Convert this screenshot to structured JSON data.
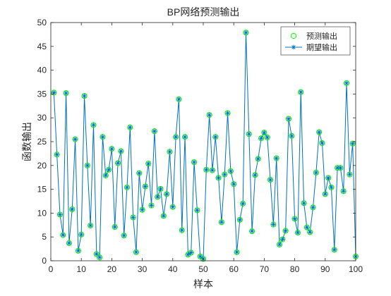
{
  "chart_data": {
    "type": "line",
    "title": "BP网络预测输出",
    "xlabel": "样本",
    "ylabel": "函数输出",
    "xlim": [
      0,
      100
    ],
    "ylim": [
      0,
      50
    ],
    "xticks": [
      "0",
      "10",
      "20",
      "30",
      "40",
      "50",
      "60",
      "70",
      "80",
      "90",
      "100"
    ],
    "yticks": [
      "0",
      "5",
      "10",
      "15",
      "20",
      "25",
      "30",
      "35",
      "40",
      "45",
      "50"
    ],
    "grid": false,
    "legend_position": "top-right",
    "x": [
      1,
      2,
      3,
      4,
      5,
      6,
      7,
      8,
      9,
      10,
      11,
      12,
      13,
      14,
      15,
      16,
      17,
      18,
      19,
      20,
      21,
      22,
      23,
      24,
      25,
      26,
      27,
      28,
      29,
      30,
      31,
      32,
      33,
      34,
      35,
      36,
      37,
      38,
      39,
      40,
      41,
      42,
      43,
      44,
      45,
      46,
      47,
      48,
      49,
      50,
      51,
      52,
      53,
      54,
      55,
      56,
      57,
      58,
      59,
      60,
      61,
      62,
      63,
      64,
      65,
      66,
      67,
      68,
      69,
      70,
      71,
      72,
      73,
      74,
      75,
      76,
      77,
      78,
      79,
      80,
      81,
      82,
      83,
      84,
      85,
      86,
      87,
      88,
      89,
      90,
      91,
      92,
      93,
      94,
      95,
      96,
      97,
      98,
      99,
      100
    ],
    "series": [
      {
        "name": "预测输出",
        "marker": "circle",
        "color": "#00ff00",
        "values": [
          35.3,
          22.3,
          9.7,
          5.4,
          35.2,
          3.7,
          10.8,
          25.5,
          2.1,
          5.5,
          34.6,
          20.0,
          7.4,
          28.5,
          1.4,
          0.7,
          26.0,
          17.9,
          19.1,
          23.5,
          7.1,
          20.5,
          23.0,
          5.3,
          15.4,
          28.0,
          9.1,
          1.8,
          18.4,
          10.7,
          15.6,
          20.4,
          11.6,
          27.2,
          13.4,
          15.1,
          9.4,
          14.0,
          22.9,
          11.3,
          26.0,
          33.9,
          6.4,
          26.0,
          1.3,
          1.7,
          20.7,
          10.6,
          0.9,
          0.4,
          19.1,
          30.6,
          19.0,
          26.0,
          17.4,
          8.1,
          18.1,
          31.0,
          18.8,
          16.1,
          1.8,
          8.6,
          12.0,
          47.9,
          26.6,
          6.2,
          18.0,
          21.4,
          25.7,
          26.9,
          25.9,
          17.0,
          7.6,
          21.5,
          3.4,
          4.5,
          6.3,
          29.8,
          26.2,
          8.8,
          5.9,
          35.4,
          12.1,
          7.0,
          6.0,
          11.2,
          18.5,
          27.0,
          24.7,
          14.0,
          17.4,
          15.4,
          2.3,
          19.5,
          19.5,
          14.6,
          37.3,
          18.1,
          24.6,
          0.9
        ]
      },
      {
        "name": "期望输出",
        "marker": "asterisk",
        "color": "#0072bd",
        "values": [
          35.3,
          22.3,
          9.7,
          5.4,
          35.2,
          3.7,
          10.8,
          25.5,
          2.1,
          5.5,
          34.6,
          20.0,
          7.4,
          28.5,
          1.4,
          0.7,
          26.0,
          17.9,
          19.1,
          23.5,
          7.1,
          20.5,
          23.0,
          5.3,
          15.4,
          28.0,
          9.1,
          1.8,
          18.4,
          10.7,
          15.6,
          20.4,
          11.6,
          27.2,
          13.4,
          15.1,
          9.4,
          14.0,
          22.9,
          11.3,
          26.0,
          33.9,
          6.4,
          26.0,
          1.3,
          1.7,
          20.7,
          10.6,
          0.9,
          0.4,
          19.1,
          30.6,
          19.0,
          26.0,
          17.4,
          8.1,
          18.1,
          31.0,
          18.8,
          16.1,
          1.8,
          8.6,
          12.0,
          47.9,
          26.6,
          6.2,
          18.0,
          21.4,
          25.7,
          26.9,
          25.9,
          17.0,
          7.6,
          21.5,
          3.4,
          4.5,
          6.3,
          29.8,
          26.2,
          8.8,
          5.9,
          35.4,
          12.1,
          7.0,
          6.0,
          11.2,
          18.5,
          27.0,
          24.7,
          14.0,
          17.4,
          15.4,
          2.3,
          19.5,
          19.5,
          14.6,
          37.3,
          18.1,
          24.6,
          0.9
        ]
      }
    ]
  }
}
